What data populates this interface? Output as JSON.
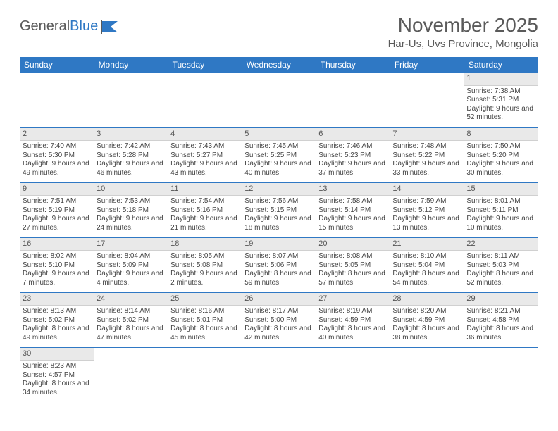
{
  "logo": {
    "text1": "General",
    "text2": "Blue"
  },
  "title": "November 2025",
  "location": "Har-Us, Uvs Province, Mongolia",
  "colors": {
    "header_bg": "#2f78c4",
    "rule": "#2f78c4",
    "daynum_bg": "#e9e9e9"
  },
  "day_headers": [
    "Sunday",
    "Monday",
    "Tuesday",
    "Wednesday",
    "Thursday",
    "Friday",
    "Saturday"
  ],
  "weeks": [
    [
      null,
      null,
      null,
      null,
      null,
      null,
      {
        "n": "1",
        "sr": "7:38 AM",
        "ss": "5:31 PM",
        "dl": "9 hours and 52 minutes."
      }
    ],
    [
      {
        "n": "2",
        "sr": "7:40 AM",
        "ss": "5:30 PM",
        "dl": "9 hours and 49 minutes."
      },
      {
        "n": "3",
        "sr": "7:42 AM",
        "ss": "5:28 PM",
        "dl": "9 hours and 46 minutes."
      },
      {
        "n": "4",
        "sr": "7:43 AM",
        "ss": "5:27 PM",
        "dl": "9 hours and 43 minutes."
      },
      {
        "n": "5",
        "sr": "7:45 AM",
        "ss": "5:25 PM",
        "dl": "9 hours and 40 minutes."
      },
      {
        "n": "6",
        "sr": "7:46 AM",
        "ss": "5:23 PM",
        "dl": "9 hours and 37 minutes."
      },
      {
        "n": "7",
        "sr": "7:48 AM",
        "ss": "5:22 PM",
        "dl": "9 hours and 33 minutes."
      },
      {
        "n": "8",
        "sr": "7:50 AM",
        "ss": "5:20 PM",
        "dl": "9 hours and 30 minutes."
      }
    ],
    [
      {
        "n": "9",
        "sr": "7:51 AM",
        "ss": "5:19 PM",
        "dl": "9 hours and 27 minutes."
      },
      {
        "n": "10",
        "sr": "7:53 AM",
        "ss": "5:18 PM",
        "dl": "9 hours and 24 minutes."
      },
      {
        "n": "11",
        "sr": "7:54 AM",
        "ss": "5:16 PM",
        "dl": "9 hours and 21 minutes."
      },
      {
        "n": "12",
        "sr": "7:56 AM",
        "ss": "5:15 PM",
        "dl": "9 hours and 18 minutes."
      },
      {
        "n": "13",
        "sr": "7:58 AM",
        "ss": "5:14 PM",
        "dl": "9 hours and 15 minutes."
      },
      {
        "n": "14",
        "sr": "7:59 AM",
        "ss": "5:12 PM",
        "dl": "9 hours and 13 minutes."
      },
      {
        "n": "15",
        "sr": "8:01 AM",
        "ss": "5:11 PM",
        "dl": "9 hours and 10 minutes."
      }
    ],
    [
      {
        "n": "16",
        "sr": "8:02 AM",
        "ss": "5:10 PM",
        "dl": "9 hours and 7 minutes."
      },
      {
        "n": "17",
        "sr": "8:04 AM",
        "ss": "5:09 PM",
        "dl": "9 hours and 4 minutes."
      },
      {
        "n": "18",
        "sr": "8:05 AM",
        "ss": "5:08 PM",
        "dl": "9 hours and 2 minutes."
      },
      {
        "n": "19",
        "sr": "8:07 AM",
        "ss": "5:06 PM",
        "dl": "8 hours and 59 minutes."
      },
      {
        "n": "20",
        "sr": "8:08 AM",
        "ss": "5:05 PM",
        "dl": "8 hours and 57 minutes."
      },
      {
        "n": "21",
        "sr": "8:10 AM",
        "ss": "5:04 PM",
        "dl": "8 hours and 54 minutes."
      },
      {
        "n": "22",
        "sr": "8:11 AM",
        "ss": "5:03 PM",
        "dl": "8 hours and 52 minutes."
      }
    ],
    [
      {
        "n": "23",
        "sr": "8:13 AM",
        "ss": "5:02 PM",
        "dl": "8 hours and 49 minutes."
      },
      {
        "n": "24",
        "sr": "8:14 AM",
        "ss": "5:02 PM",
        "dl": "8 hours and 47 minutes."
      },
      {
        "n": "25",
        "sr": "8:16 AM",
        "ss": "5:01 PM",
        "dl": "8 hours and 45 minutes."
      },
      {
        "n": "26",
        "sr": "8:17 AM",
        "ss": "5:00 PM",
        "dl": "8 hours and 42 minutes."
      },
      {
        "n": "27",
        "sr": "8:19 AM",
        "ss": "4:59 PM",
        "dl": "8 hours and 40 minutes."
      },
      {
        "n": "28",
        "sr": "8:20 AM",
        "ss": "4:59 PM",
        "dl": "8 hours and 38 minutes."
      },
      {
        "n": "29",
        "sr": "8:21 AM",
        "ss": "4:58 PM",
        "dl": "8 hours and 36 minutes."
      }
    ],
    [
      {
        "n": "30",
        "sr": "8:23 AM",
        "ss": "4:57 PM",
        "dl": "8 hours and 34 minutes."
      },
      null,
      null,
      null,
      null,
      null,
      null
    ]
  ],
  "labels": {
    "sunrise": "Sunrise: ",
    "sunset": "Sunset: ",
    "daylight": "Daylight: "
  }
}
